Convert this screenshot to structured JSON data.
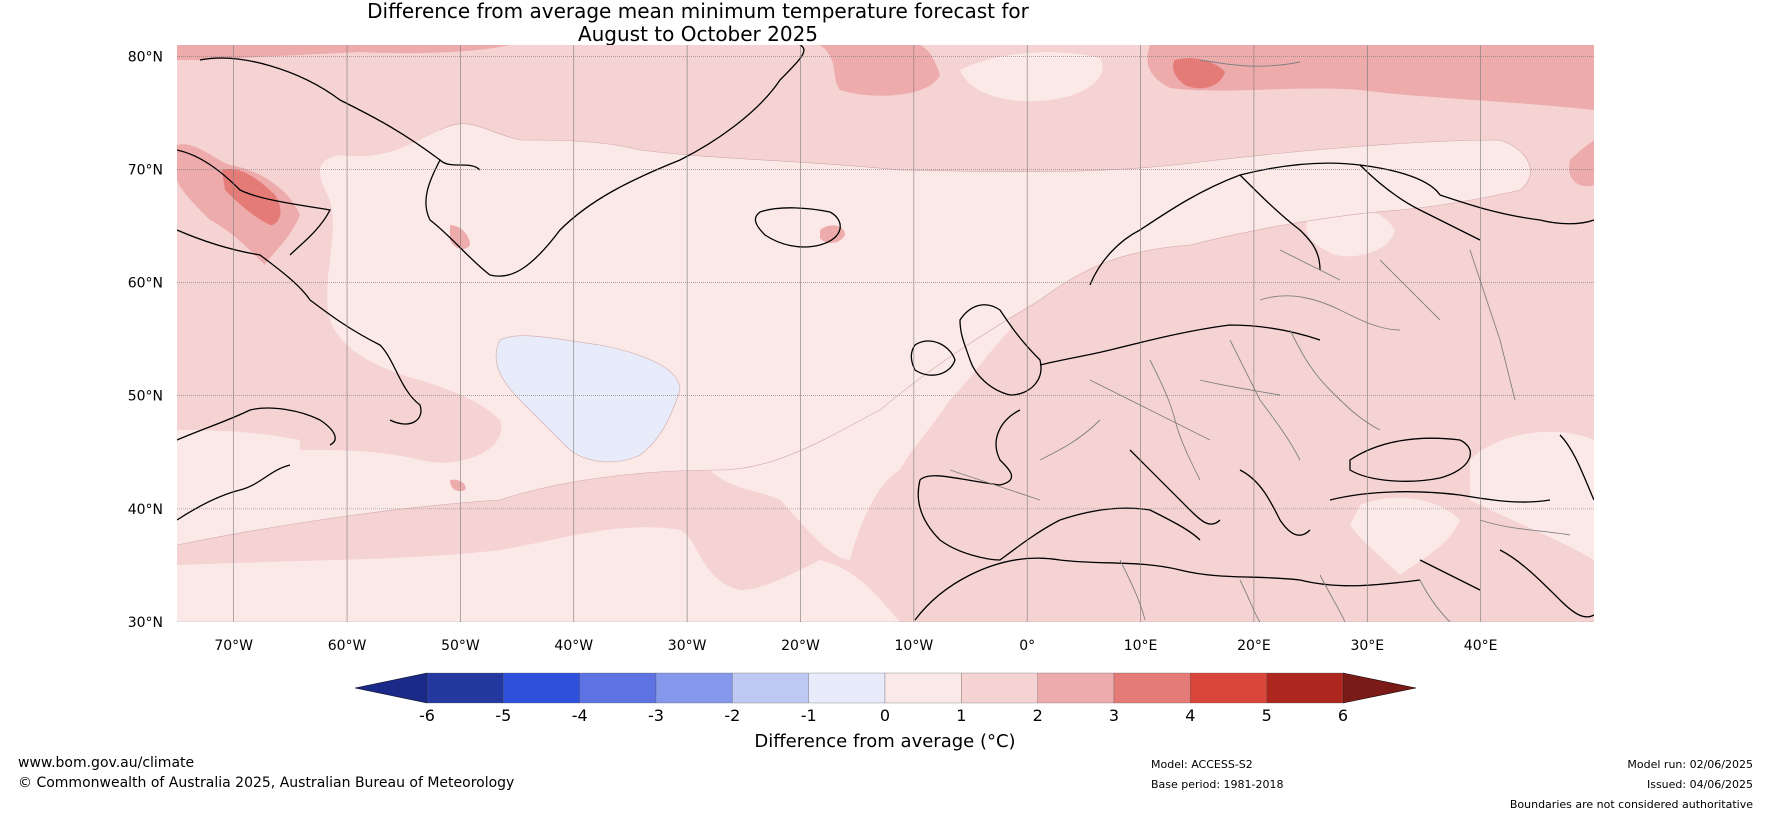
{
  "title": {
    "line1": "Difference from average mean minimum temperature forecast for",
    "line2": "August to October 2025"
  },
  "map": {
    "lat_labels": [
      "80°N",
      "70°N",
      "60°N",
      "50°N",
      "40°N",
      "30°N"
    ],
    "lon_labels": [
      "70°W",
      "60°W",
      "50°W",
      "40°W",
      "30°W",
      "20°W",
      "10°W",
      "0°",
      "10°E",
      "20°E",
      "30°E",
      "40°E"
    ],
    "region": "North Atlantic and Europe",
    "extent": {
      "lon": [
        -75,
        50
      ],
      "lat": [
        30,
        81
      ]
    }
  },
  "colorbar": {
    "ticks": [
      "-6",
      "-5",
      "-4",
      "-3",
      "-2",
      "-1",
      "0",
      "1",
      "2",
      "3",
      "4",
      "5",
      "6"
    ],
    "label": "Difference from average (°C)",
    "colors": [
      "#24399f",
      "#2e4fd9",
      "#5d73e4",
      "#8597ea",
      "#bfc8f3",
      "#e8ecfa",
      "#fbe9e8",
      "#f5d3d2",
      "#eeabab",
      "#e47b77",
      "#db463a",
      "#ad271f"
    ],
    "under_color": "#1b2a88",
    "over_color": "#7a1b17"
  },
  "footer": {
    "website": "www.bom.gov.au/climate",
    "copyright": "© Commonwealth of Australia 2025, Australian Bureau of Meteorology",
    "model": "Model: ACCESS-S2",
    "base_period": "Base period: 1981-2018",
    "model_run": "Model run: 02/06/2025",
    "issued": "Issued: 04/06/2025",
    "disclaimer": "Boundaries are not considered authoritative"
  }
}
